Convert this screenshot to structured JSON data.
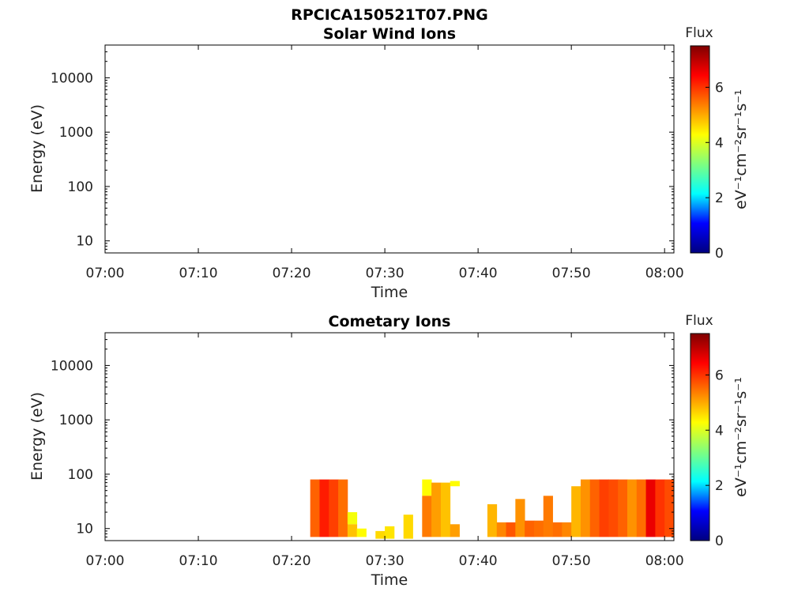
{
  "figure": {
    "filename": "RPCICA150521T07.PNG"
  },
  "colorbar": {
    "title": "Flux",
    "unit_label": "eV⁻¹cm⁻²sr⁻¹s⁻¹",
    "range": [
      0,
      7.5
    ],
    "ticks": [
      "0",
      "2",
      "4",
      "6"
    ],
    "colormap": "jet",
    "colormap_stops": [
      "#00007f",
      "#0000ff",
      "#00ffff",
      "#7fff7f",
      "#ffff00",
      "#ff7f00",
      "#ff0000",
      "#7f0000"
    ]
  },
  "chart_data": [
    {
      "type": "heatmap",
      "title": "Solar Wind Ions",
      "xlabel": "Time",
      "ylabel": "Energy (eV)",
      "x_ticks": [
        "07:00",
        "07:10",
        "07:20",
        "07:30",
        "07:40",
        "07:50",
        "08:00"
      ],
      "y_ticks": [
        "10",
        "100",
        "1000",
        "10000"
      ],
      "y_scale": "log",
      "xlim": [
        "07:00",
        "08:01"
      ],
      "ylim": [
        6,
        40000
      ],
      "cells": []
    },
    {
      "type": "heatmap",
      "title": "Cometary Ions",
      "xlabel": "Time",
      "ylabel": "Energy (eV)",
      "x_ticks": [
        "07:00",
        "07:10",
        "07:20",
        "07:30",
        "07:40",
        "07:50",
        "08:00"
      ],
      "y_ticks": [
        "10",
        "100",
        "1000",
        "10000"
      ],
      "y_scale": "log",
      "xlim": [
        "07:00",
        "08:01"
      ],
      "ylim": [
        6,
        40000
      ],
      "cells": [
        {
          "t0": "07:22",
          "t1": "07:23",
          "e0": 7,
          "e1": 80,
          "flux": 5.6
        },
        {
          "t0": "07:23",
          "t1": "07:24",
          "e0": 7,
          "e1": 80,
          "flux": 6.2
        },
        {
          "t0": "07:24",
          "t1": "07:25",
          "e0": 7,
          "e1": 80,
          "flux": 5.9
        },
        {
          "t0": "07:25",
          "t1": "07:26",
          "e0": 7,
          "e1": 80,
          "flux": 5.5
        },
        {
          "t0": "07:26",
          "t1": "07:27",
          "e0": 12,
          "e1": 20,
          "flux": 4.2
        },
        {
          "t0": "07:26",
          "t1": "07:27",
          "e0": 7,
          "e1": 12,
          "flux": 4.8
        },
        {
          "t0": "07:27",
          "t1": "07:28",
          "e0": 7,
          "e1": 10,
          "flux": 4.3
        },
        {
          "t0": "07:29",
          "t1": "07:30",
          "e0": 6.5,
          "e1": 9,
          "flux": 4.6
        },
        {
          "t0": "07:30",
          "t1": "07:31",
          "e0": 6.5,
          "e1": 11,
          "flux": 4.5
        },
        {
          "t0": "07:32",
          "t1": "07:33",
          "e0": 6.5,
          "e1": 18,
          "flux": 4.6
        },
        {
          "t0": "07:34",
          "t1": "07:35",
          "e0": 40,
          "e1": 80,
          "flux": 4.3
        },
        {
          "t0": "07:34",
          "t1": "07:35",
          "e0": 7,
          "e1": 40,
          "flux": 5.4
        },
        {
          "t0": "07:35",
          "t1": "07:36",
          "e0": 7,
          "e1": 70,
          "flux": 5.1
        },
        {
          "t0": "07:36",
          "t1": "07:37",
          "e0": 7,
          "e1": 70,
          "flux": 4.8
        },
        {
          "t0": "07:37",
          "t1": "07:38",
          "e0": 60,
          "e1": 75,
          "flux": 4.3
        },
        {
          "t0": "07:37",
          "t1": "07:38",
          "e0": 7,
          "e1": 12,
          "flux": 5.1
        },
        {
          "t0": "07:41",
          "t1": "07:42",
          "e0": 7,
          "e1": 28,
          "flux": 4.9
        },
        {
          "t0": "07:42",
          "t1": "07:43",
          "e0": 7,
          "e1": 13,
          "flux": 5.3
        },
        {
          "t0": "07:43",
          "t1": "07:44",
          "e0": 7,
          "e1": 13,
          "flux": 5.7
        },
        {
          "t0": "07:44",
          "t1": "07:45",
          "e0": 7,
          "e1": 35,
          "flux": 5.2
        },
        {
          "t0": "07:45",
          "t1": "07:46",
          "e0": 7,
          "e1": 14,
          "flux": 5.6
        },
        {
          "t0": "07:46",
          "t1": "07:47",
          "e0": 7,
          "e1": 14,
          "flux": 5.5
        },
        {
          "t0": "07:47",
          "t1": "07:48",
          "e0": 7,
          "e1": 40,
          "flux": 5.4
        },
        {
          "t0": "07:48",
          "t1": "07:49",
          "e0": 7,
          "e1": 13,
          "flux": 5.5
        },
        {
          "t0": "07:49",
          "t1": "07:50",
          "e0": 7,
          "e1": 13,
          "flux": 5.3
        },
        {
          "t0": "07:50",
          "t1": "07:51",
          "e0": 7,
          "e1": 60,
          "flux": 4.9
        },
        {
          "t0": "07:51",
          "t1": "07:52",
          "e0": 7,
          "e1": 80,
          "flux": 5.2
        },
        {
          "t0": "07:52",
          "t1": "07:53",
          "e0": 7,
          "e1": 80,
          "flux": 5.6
        },
        {
          "t0": "07:53",
          "t1": "07:54",
          "e0": 7,
          "e1": 80,
          "flux": 5.9
        },
        {
          "t0": "07:54",
          "t1": "07:55",
          "e0": 7,
          "e1": 80,
          "flux": 5.8
        },
        {
          "t0": "07:55",
          "t1": "07:56",
          "e0": 7,
          "e1": 80,
          "flux": 5.6
        },
        {
          "t0": "07:56",
          "t1": "07:57",
          "e0": 7,
          "e1": 80,
          "flux": 5.2
        },
        {
          "t0": "07:57",
          "t1": "07:58",
          "e0": 7,
          "e1": 80,
          "flux": 5.5
        },
        {
          "t0": "07:58",
          "t1": "07:59",
          "e0": 7,
          "e1": 80,
          "flux": 6.6
        },
        {
          "t0": "07:59",
          "t1": "08:00",
          "e0": 7,
          "e1": 80,
          "flux": 6.0
        },
        {
          "t0": "08:00",
          "t1": "08:01",
          "e0": 7,
          "e1": 80,
          "flux": 5.8
        }
      ]
    }
  ]
}
